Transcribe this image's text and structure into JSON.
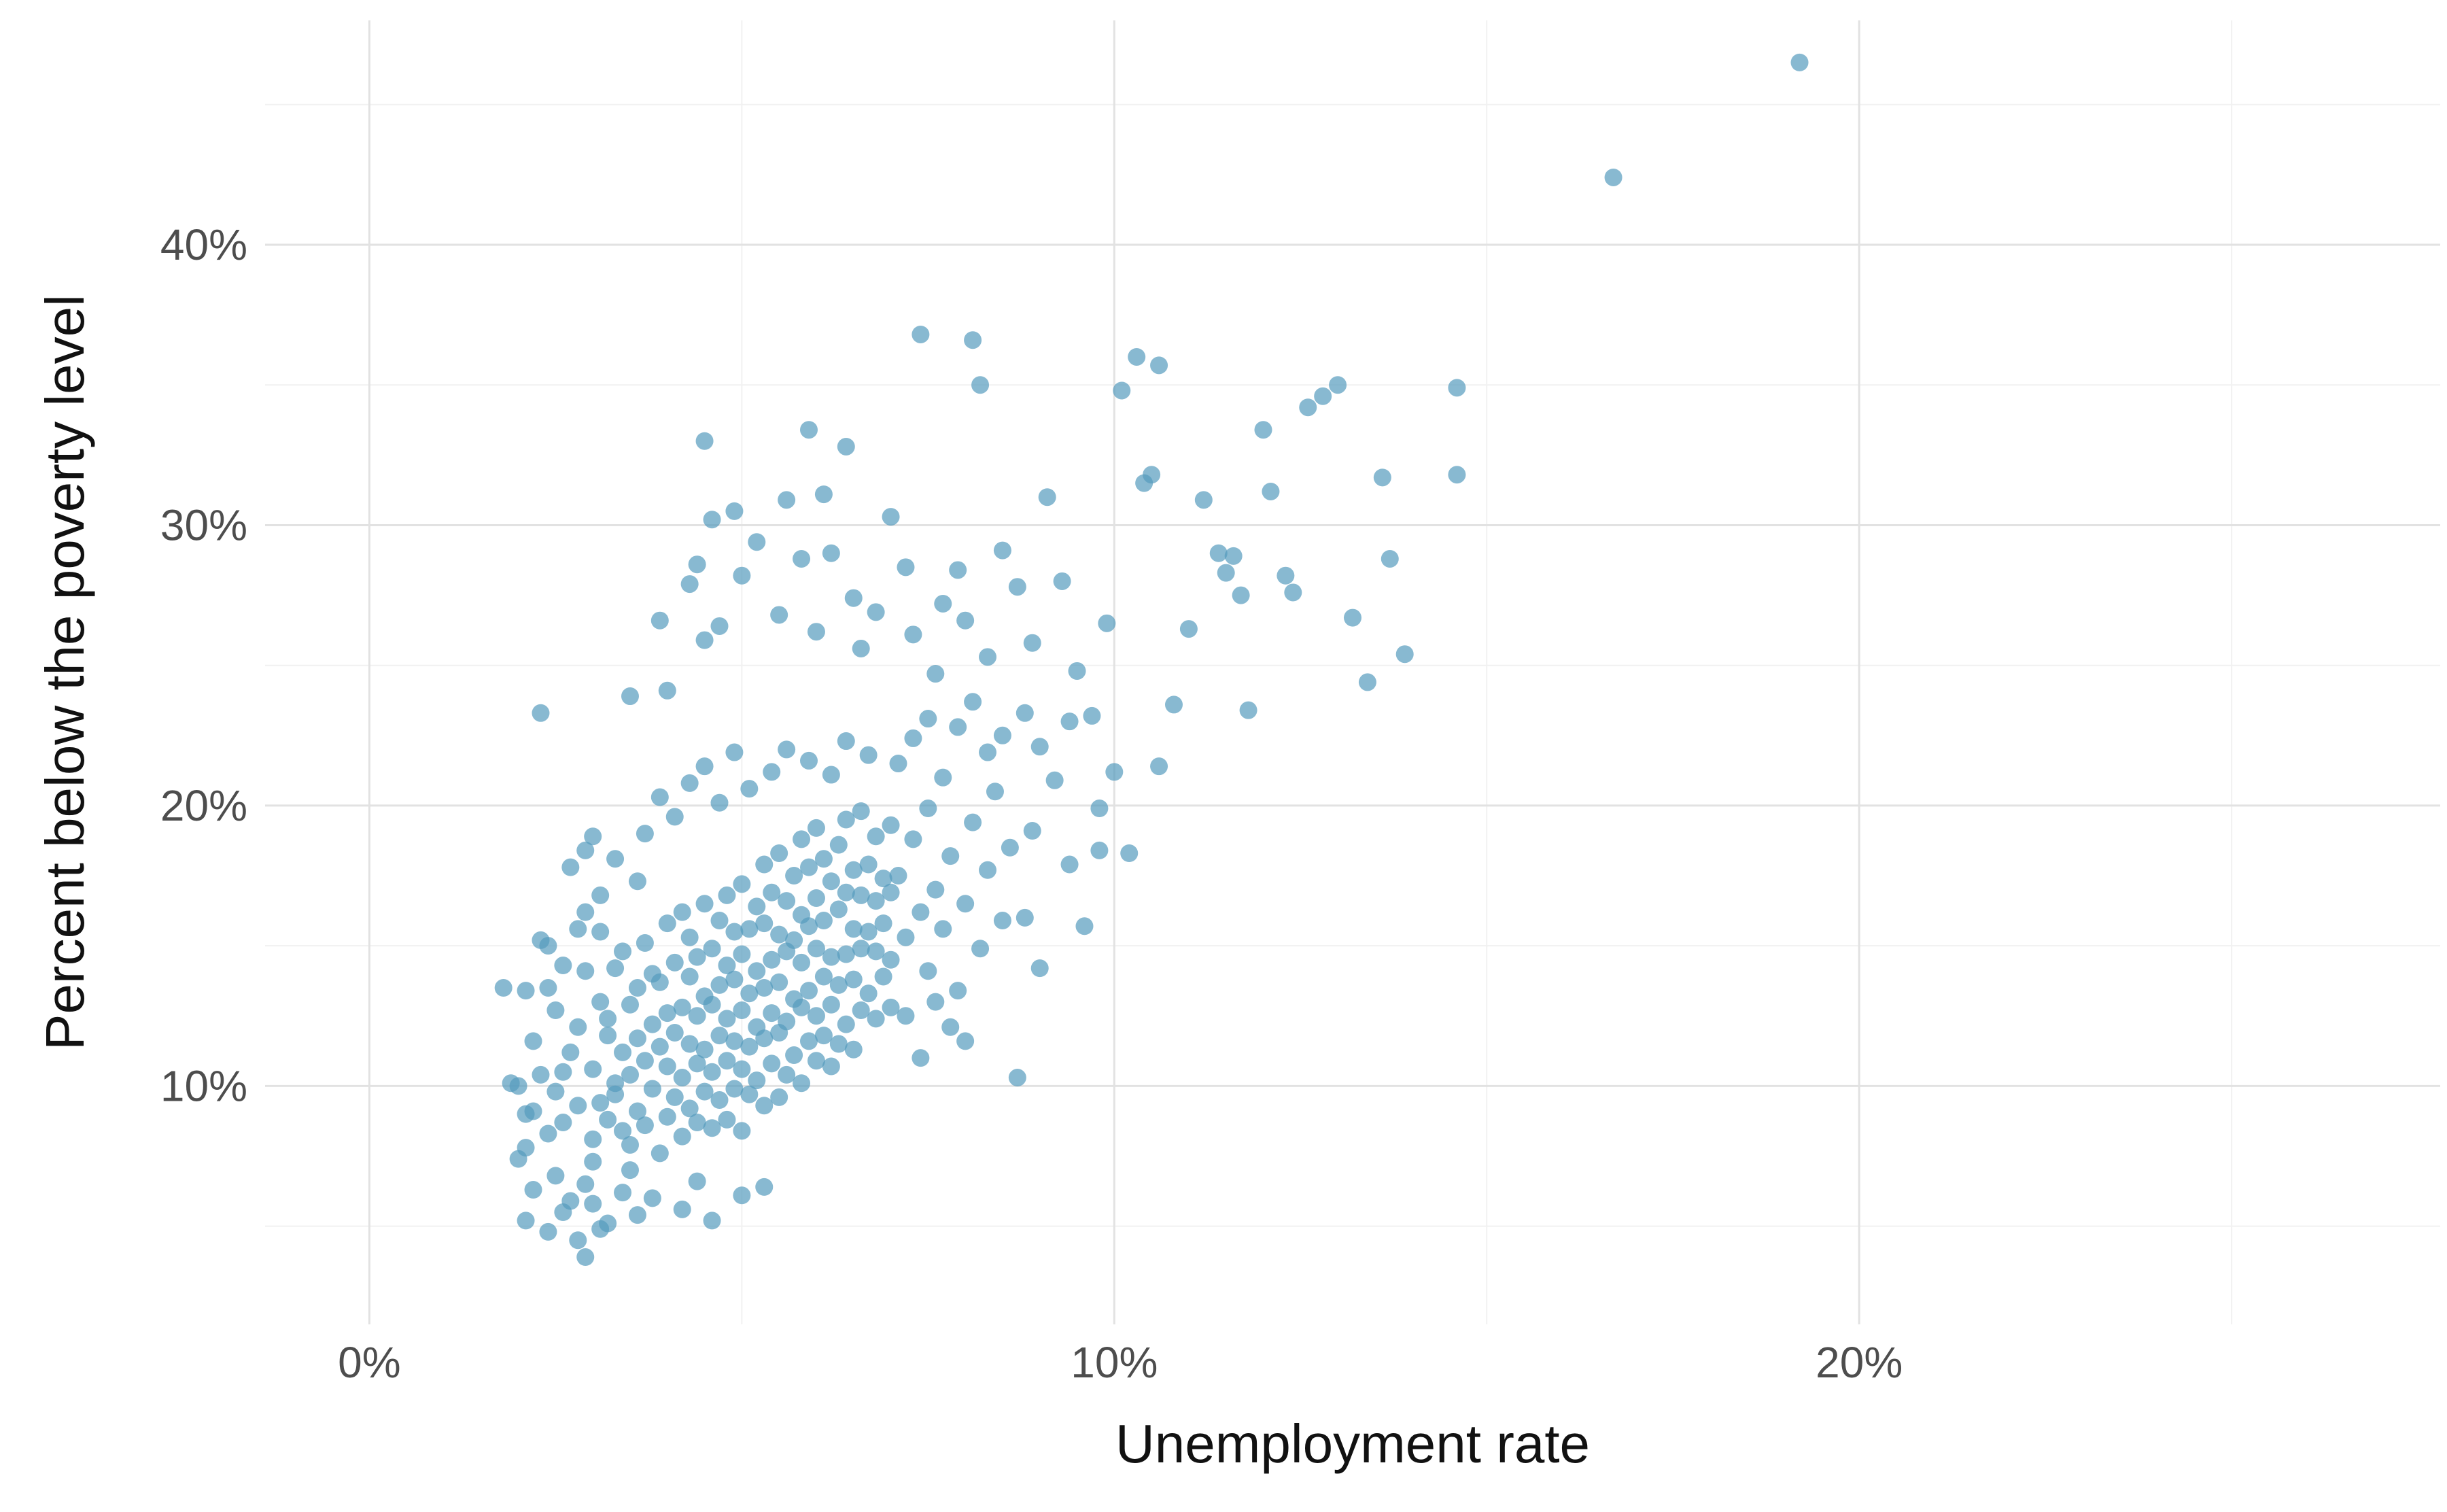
{
  "chart_data": {
    "type": "scatter",
    "title": "",
    "xlabel": "Unemployment rate",
    "ylabel": "Percent below the poverty level",
    "legend": "none",
    "grid": "major+minor",
    "point_color": "#569bbd",
    "point_opacity": 0.7,
    "point_radius": 13,
    "xlim": [
      -1.4,
      27.8
    ],
    "ylim": [
      1.5,
      48
    ],
    "x_ticks": [
      {
        "value": 0,
        "label": "0%"
      },
      {
        "value": 10,
        "label": "10%"
      },
      {
        "value": 20,
        "label": "20%"
      }
    ],
    "y_ticks": [
      {
        "value": 10,
        "label": "10%"
      },
      {
        "value": 20,
        "label": "20%"
      },
      {
        "value": 30,
        "label": "30%"
      },
      {
        "value": 40,
        "label": "40%"
      }
    ],
    "x_minor": [
      5,
      15,
      25
    ],
    "y_minor": [
      5,
      15,
      25,
      35,
      45
    ],
    "points": [
      [
        1.8,
        13.5
      ],
      [
        1.9,
        10.1
      ],
      [
        2.0,
        7.4
      ],
      [
        2.0,
        10.0
      ],
      [
        2.1,
        5.2
      ],
      [
        2.1,
        7.8
      ],
      [
        2.1,
        9.0
      ],
      [
        2.1,
        13.4
      ],
      [
        2.2,
        6.3
      ],
      [
        2.2,
        9.1
      ],
      [
        2.2,
        11.6
      ],
      [
        2.3,
        10.4
      ],
      [
        2.3,
        15.2
      ],
      [
        2.3,
        23.3
      ],
      [
        2.4,
        4.8
      ],
      [
        2.4,
        8.3
      ],
      [
        2.4,
        13.5
      ],
      [
        2.4,
        15.0
      ],
      [
        2.5,
        6.8
      ],
      [
        2.5,
        9.8
      ],
      [
        2.5,
        12.7
      ],
      [
        2.6,
        5.5
      ],
      [
        2.6,
        8.7
      ],
      [
        2.6,
        10.5
      ],
      [
        2.6,
        14.3
      ],
      [
        2.7,
        5.9
      ],
      [
        2.7,
        11.2
      ],
      [
        2.7,
        17.8
      ],
      [
        2.8,
        4.5
      ],
      [
        2.8,
        9.3
      ],
      [
        2.8,
        12.1
      ],
      [
        2.8,
        15.6
      ],
      [
        2.9,
        3.9
      ],
      [
        2.9,
        6.5
      ],
      [
        2.9,
        14.1
      ],
      [
        2.9,
        16.2
      ],
      [
        2.9,
        18.4
      ],
      [
        3.0,
        5.8
      ],
      [
        3.0,
        7.3
      ],
      [
        3.0,
        8.1
      ],
      [
        3.0,
        10.6
      ],
      [
        3.0,
        18.9
      ],
      [
        3.1,
        4.9
      ],
      [
        3.1,
        9.4
      ],
      [
        3.1,
        13.0
      ],
      [
        3.1,
        15.5
      ],
      [
        3.1,
        16.8
      ],
      [
        3.2,
        5.1
      ],
      [
        3.2,
        8.8
      ],
      [
        3.2,
        11.8
      ],
      [
        3.2,
        12.4
      ],
      [
        3.3,
        9.7
      ],
      [
        3.3,
        10.1
      ],
      [
        3.3,
        14.2
      ],
      [
        3.3,
        18.1
      ],
      [
        3.4,
        6.2
      ],
      [
        3.4,
        8.4
      ],
      [
        3.4,
        11.2
      ],
      [
        3.4,
        14.8
      ],
      [
        3.5,
        7.0
      ],
      [
        3.5,
        7.9
      ],
      [
        3.5,
        10.4
      ],
      [
        3.5,
        12.9
      ],
      [
        3.5,
        23.9
      ],
      [
        3.6,
        5.4
      ],
      [
        3.6,
        9.1
      ],
      [
        3.6,
        11.7
      ],
      [
        3.6,
        13.5
      ],
      [
        3.6,
        17.3
      ],
      [
        3.7,
        8.6
      ],
      [
        3.7,
        10.9
      ],
      [
        3.7,
        15.1
      ],
      [
        3.7,
        19.0
      ],
      [
        3.8,
        6.0
      ],
      [
        3.8,
        9.9
      ],
      [
        3.8,
        12.2
      ],
      [
        3.8,
        14.0
      ],
      [
        3.9,
        7.6
      ],
      [
        3.9,
        11.4
      ],
      [
        3.9,
        13.7
      ],
      [
        3.9,
        20.3
      ],
      [
        3.9,
        26.6
      ],
      [
        4.0,
        8.9
      ],
      [
        4.0,
        10.7
      ],
      [
        4.0,
        12.6
      ],
      [
        4.0,
        15.8
      ],
      [
        4.0,
        24.1
      ],
      [
        4.1,
        9.6
      ],
      [
        4.1,
        11.9
      ],
      [
        4.1,
        14.4
      ],
      [
        4.1,
        19.6
      ],
      [
        4.2,
        5.6
      ],
      [
        4.2,
        8.2
      ],
      [
        4.2,
        10.3
      ],
      [
        4.2,
        12.8
      ],
      [
        4.2,
        16.2
      ],
      [
        4.3,
        9.2
      ],
      [
        4.3,
        11.5
      ],
      [
        4.3,
        13.9
      ],
      [
        4.3,
        15.3
      ],
      [
        4.3,
        20.8
      ],
      [
        4.3,
        27.9
      ],
      [
        4.4,
        6.6
      ],
      [
        4.4,
        8.7
      ],
      [
        4.4,
        10.8
      ],
      [
        4.4,
        12.5
      ],
      [
        4.4,
        14.6
      ],
      [
        4.4,
        28.6
      ],
      [
        4.5,
        9.8
      ],
      [
        4.5,
        11.3
      ],
      [
        4.5,
        13.2
      ],
      [
        4.5,
        16.5
      ],
      [
        4.5,
        21.4
      ],
      [
        4.5,
        25.9
      ],
      [
        4.5,
        33.0
      ],
      [
        4.6,
        5.2
      ],
      [
        4.6,
        8.5
      ],
      [
        4.6,
        10.5
      ],
      [
        4.6,
        12.9
      ],
      [
        4.6,
        14.9
      ],
      [
        4.6,
        30.2
      ],
      [
        4.7,
        9.5
      ],
      [
        4.7,
        11.8
      ],
      [
        4.7,
        13.6
      ],
      [
        4.7,
        15.9
      ],
      [
        4.7,
        20.1
      ],
      [
        4.7,
        26.4
      ],
      [
        4.8,
        8.8
      ],
      [
        4.8,
        10.9
      ],
      [
        4.8,
        12.4
      ],
      [
        4.8,
        14.3
      ],
      [
        4.8,
        16.8
      ],
      [
        4.9,
        9.9
      ],
      [
        4.9,
        11.6
      ],
      [
        4.9,
        13.8
      ],
      [
        4.9,
        15.5
      ],
      [
        4.9,
        21.9
      ],
      [
        4.9,
        30.5
      ],
      [
        5.0,
        6.1
      ],
      [
        5.0,
        8.4
      ],
      [
        5.0,
        10.6
      ],
      [
        5.0,
        12.7
      ],
      [
        5.0,
        14.7
      ],
      [
        5.0,
        17.2
      ],
      [
        5.0,
        28.2
      ],
      [
        5.1,
        9.7
      ],
      [
        5.1,
        11.4
      ],
      [
        5.1,
        13.3
      ],
      [
        5.1,
        15.6
      ],
      [
        5.1,
        20.6
      ],
      [
        5.2,
        10.2
      ],
      [
        5.2,
        12.1
      ],
      [
        5.2,
        14.1
      ],
      [
        5.2,
        16.4
      ],
      [
        5.2,
        29.4
      ],
      [
        5.3,
        6.4
      ],
      [
        5.3,
        9.3
      ],
      [
        5.3,
        11.7
      ],
      [
        5.3,
        13.5
      ],
      [
        5.3,
        15.8
      ],
      [
        5.3,
        17.9
      ],
      [
        5.4,
        10.8
      ],
      [
        5.4,
        12.6
      ],
      [
        5.4,
        14.5
      ],
      [
        5.4,
        16.9
      ],
      [
        5.4,
        21.2
      ],
      [
        5.5,
        9.6
      ],
      [
        5.5,
        11.9
      ],
      [
        5.5,
        13.7
      ],
      [
        5.5,
        15.4
      ],
      [
        5.5,
        18.3
      ],
      [
        5.5,
        26.8
      ],
      [
        5.6,
        10.4
      ],
      [
        5.6,
        12.3
      ],
      [
        5.6,
        14.8
      ],
      [
        5.6,
        16.6
      ],
      [
        5.6,
        22.0
      ],
      [
        5.6,
        30.9
      ],
      [
        5.7,
        11.1
      ],
      [
        5.7,
        13.1
      ],
      [
        5.7,
        15.2
      ],
      [
        5.7,
        17.5
      ],
      [
        5.8,
        10.1
      ],
      [
        5.8,
        12.8
      ],
      [
        5.8,
        14.4
      ],
      [
        5.8,
        16.1
      ],
      [
        5.8,
        18.8
      ],
      [
        5.8,
        28.8
      ],
      [
        5.9,
        11.6
      ],
      [
        5.9,
        13.4
      ],
      [
        5.9,
        15.7
      ],
      [
        5.9,
        17.8
      ],
      [
        5.9,
        21.6
      ],
      [
        5.9,
        33.4
      ],
      [
        6.0,
        10.9
      ],
      [
        6.0,
        12.5
      ],
      [
        6.0,
        14.9
      ],
      [
        6.0,
        16.7
      ],
      [
        6.0,
        19.2
      ],
      [
        6.0,
        26.2
      ],
      [
        6.1,
        11.8
      ],
      [
        6.1,
        13.9
      ],
      [
        6.1,
        15.9
      ],
      [
        6.1,
        18.1
      ],
      [
        6.1,
        31.1
      ],
      [
        6.2,
        10.7
      ],
      [
        6.2,
        12.9
      ],
      [
        6.2,
        14.6
      ],
      [
        6.2,
        17.3
      ],
      [
        6.2,
        21.1
      ],
      [
        6.2,
        29.0
      ],
      [
        6.3,
        11.5
      ],
      [
        6.3,
        13.6
      ],
      [
        6.3,
        16.3
      ],
      [
        6.3,
        18.6
      ],
      [
        6.4,
        12.2
      ],
      [
        6.4,
        14.7
      ],
      [
        6.4,
        16.9
      ],
      [
        6.4,
        19.5
      ],
      [
        6.4,
        22.3
      ],
      [
        6.4,
        32.8
      ],
      [
        6.5,
        11.3
      ],
      [
        6.5,
        13.8
      ],
      [
        6.5,
        15.6
      ],
      [
        6.5,
        17.7
      ],
      [
        6.5,
        27.4
      ],
      [
        6.6,
        12.7
      ],
      [
        6.6,
        14.9
      ],
      [
        6.6,
        16.8
      ],
      [
        6.6,
        19.8
      ],
      [
        6.6,
        25.6
      ],
      [
        6.7,
        13.3
      ],
      [
        6.7,
        15.5
      ],
      [
        6.7,
        17.9
      ],
      [
        6.7,
        21.8
      ],
      [
        6.8,
        12.4
      ],
      [
        6.8,
        14.8
      ],
      [
        6.8,
        16.6
      ],
      [
        6.8,
        18.9
      ],
      [
        6.8,
        26.9
      ],
      [
        6.9,
        13.9
      ],
      [
        6.9,
        15.8
      ],
      [
        6.9,
        17.4
      ],
      [
        7.0,
        12.8
      ],
      [
        7.0,
        14.5
      ],
      [
        7.0,
        16.9
      ],
      [
        7.0,
        19.3
      ],
      [
        7.0,
        30.3
      ],
      [
        7.1,
        17.5
      ],
      [
        7.1,
        21.5
      ],
      [
        7.2,
        12.5
      ],
      [
        7.2,
        15.3
      ],
      [
        7.2,
        28.5
      ],
      [
        7.3,
        18.8
      ],
      [
        7.3,
        22.4
      ],
      [
        7.3,
        26.1
      ],
      [
        7.4,
        11.0
      ],
      [
        7.4,
        16.2
      ],
      [
        7.4,
        36.8
      ],
      [
        7.5,
        14.1
      ],
      [
        7.5,
        19.9
      ],
      [
        7.5,
        23.1
      ],
      [
        7.6,
        13.0
      ],
      [
        7.6,
        17.0
      ],
      [
        7.6,
        24.7
      ],
      [
        7.7,
        15.6
      ],
      [
        7.7,
        21.0
      ],
      [
        7.7,
        27.2
      ],
      [
        7.8,
        12.1
      ],
      [
        7.8,
        18.2
      ],
      [
        7.9,
        13.4
      ],
      [
        7.9,
        22.8
      ],
      [
        7.9,
        28.4
      ],
      [
        8.0,
        11.6
      ],
      [
        8.0,
        16.5
      ],
      [
        8.0,
        26.6
      ],
      [
        8.1,
        19.4
      ],
      [
        8.1,
        23.7
      ],
      [
        8.1,
        36.6
      ],
      [
        8.2,
        14.9
      ],
      [
        8.2,
        35.0
      ],
      [
        8.3,
        17.7
      ],
      [
        8.3,
        21.9
      ],
      [
        8.3,
        25.3
      ],
      [
        8.4,
        20.5
      ],
      [
        8.5,
        15.9
      ],
      [
        8.5,
        22.5
      ],
      [
        8.5,
        29.1
      ],
      [
        8.6,
        18.5
      ],
      [
        8.7,
        10.3
      ],
      [
        8.7,
        27.8
      ],
      [
        8.8,
        16.0
      ],
      [
        8.8,
        23.3
      ],
      [
        8.9,
        19.1
      ],
      [
        8.9,
        25.8
      ],
      [
        9.0,
        14.2
      ],
      [
        9.0,
        22.1
      ],
      [
        9.1,
        31.0
      ],
      [
        9.2,
        20.9
      ],
      [
        9.3,
        28.0
      ],
      [
        9.4,
        17.9
      ],
      [
        9.4,
        23.0
      ],
      [
        9.5,
        24.8
      ],
      [
        9.6,
        15.7
      ],
      [
        9.7,
        23.2
      ],
      [
        9.8,
        18.4
      ],
      [
        9.8,
        19.9
      ],
      [
        9.9,
        26.5
      ],
      [
        10.0,
        21.2
      ],
      [
        10.1,
        34.8
      ],
      [
        10.2,
        18.3
      ],
      [
        10.3,
        36.0
      ],
      [
        10.4,
        31.5
      ],
      [
        10.5,
        31.8
      ],
      [
        10.6,
        21.4
      ],
      [
        10.6,
        35.7
      ],
      [
        10.8,
        23.6
      ],
      [
        11.0,
        26.3
      ],
      [
        11.2,
        30.9
      ],
      [
        11.4,
        29.0
      ],
      [
        11.5,
        28.3
      ],
      [
        11.6,
        28.9
      ],
      [
        11.7,
        27.5
      ],
      [
        11.8,
        23.4
      ],
      [
        12.0,
        33.4
      ],
      [
        12.1,
        31.2
      ],
      [
        12.3,
        28.2
      ],
      [
        12.4,
        27.6
      ],
      [
        12.6,
        34.2
      ],
      [
        12.8,
        34.6
      ],
      [
        13.0,
        35.0
      ],
      [
        13.2,
        26.7
      ],
      [
        13.4,
        24.4
      ],
      [
        13.6,
        31.7
      ],
      [
        13.7,
        28.8
      ],
      [
        13.9,
        25.4
      ],
      [
        14.6,
        31.8
      ],
      [
        14.6,
        34.9
      ],
      [
        16.7,
        42.4
      ],
      [
        19.2,
        46.5
      ]
    ]
  }
}
